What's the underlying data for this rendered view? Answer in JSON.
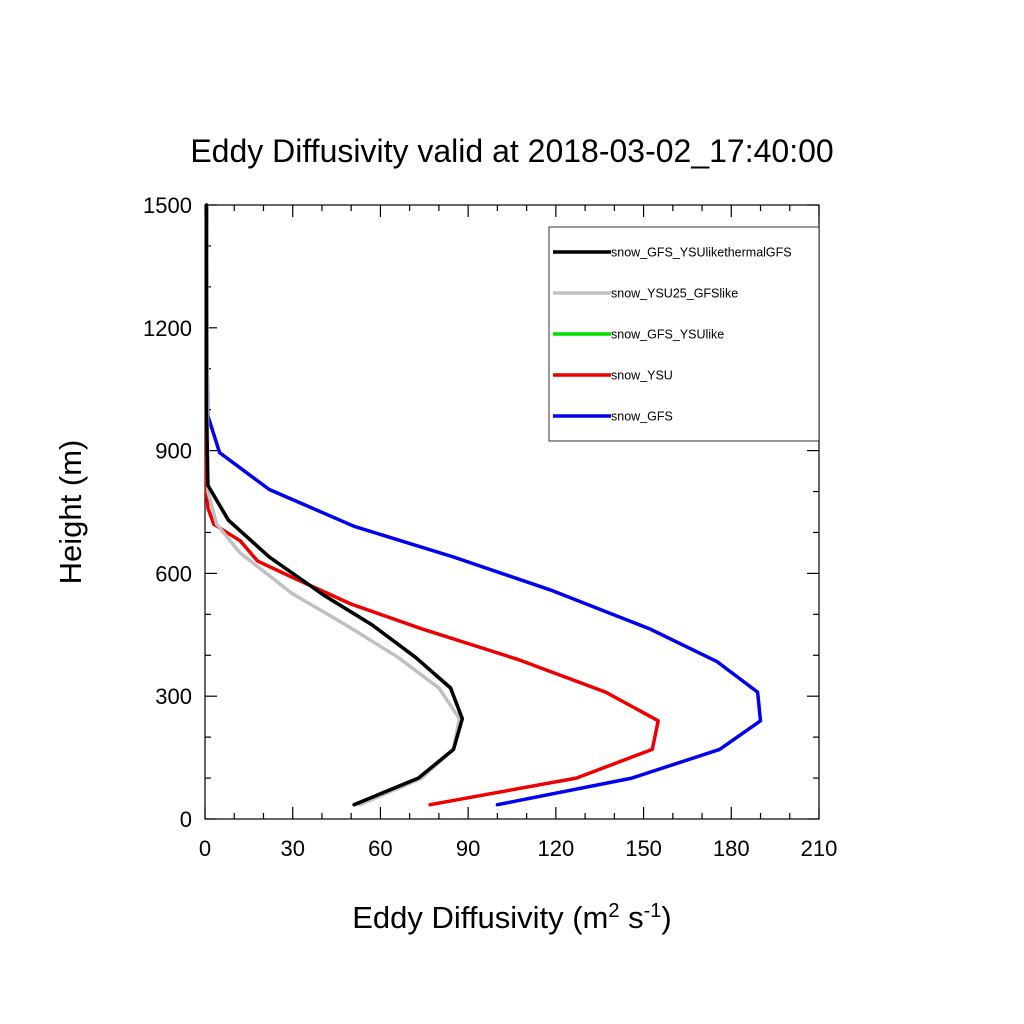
{
  "chart_data": {
    "type": "line",
    "title": "Eddy Diffusivity valid at 2018-03-02_17:40:00",
    "xlabel": "Eddy Diffusivity",
    "xlabel_unit": {
      "base1": "m",
      "sup1": "2",
      "base2": " s",
      "sup2": "-1"
    },
    "ylabel": "Height (m)",
    "xlim": [
      0,
      210
    ],
    "ylim": [
      0,
      1500
    ],
    "x_ticks": [
      0,
      30,
      60,
      90,
      120,
      150,
      180,
      210
    ],
    "y_ticks": [
      0,
      300,
      600,
      900,
      1200,
      1500
    ],
    "x_tick_labels": [
      "0",
      "30",
      "60",
      "90",
      "120",
      "150",
      "180",
      "210"
    ],
    "y_tick_labels": [
      "0",
      "300",
      "600",
      "900",
      "1200",
      "1500"
    ],
    "x_minor_step": 10,
    "y_minor_step": 100,
    "legend_position": "top-right",
    "series": [
      {
        "name": "snow_GFS",
        "color": "#0000ee",
        "points": [
          [
            100,
            35
          ],
          [
            146,
            100
          ],
          [
            176,
            170
          ],
          [
            190,
            240
          ],
          [
            189,
            310
          ],
          [
            175,
            385
          ],
          [
            152,
            465
          ],
          [
            118,
            560
          ],
          [
            85,
            640
          ],
          [
            51,
            715
          ],
          [
            22,
            805
          ],
          [
            5,
            895
          ],
          [
            1,
            985
          ],
          [
            0.5,
            1200
          ],
          [
            0.5,
            1500
          ]
        ]
      },
      {
        "name": "snow_YSU",
        "color": "#ee0000",
        "points": [
          [
            77,
            35
          ],
          [
            127,
            100
          ],
          [
            153,
            170
          ],
          [
            155,
            240
          ],
          [
            137,
            310
          ],
          [
            107,
            390
          ],
          [
            74,
            465
          ],
          [
            50,
            525
          ],
          [
            30,
            590
          ],
          [
            18,
            630
          ],
          [
            12,
            680
          ],
          [
            3,
            720
          ],
          [
            1,
            760
          ],
          [
            0.5,
            800
          ],
          [
            0.5,
            1500
          ]
        ]
      },
      {
        "name": "snow_GFS_YSUlike",
        "color": "#00dd00",
        "points": [
          [
            51,
            35
          ],
          [
            73,
            100
          ],
          [
            85,
            170
          ],
          [
            88,
            245
          ],
          [
            84,
            320
          ],
          [
            72,
            395
          ],
          [
            57,
            475
          ],
          [
            41,
            545
          ],
          [
            22,
            640
          ],
          [
            8,
            730
          ],
          [
            1,
            815
          ],
          [
            0.5,
            1000
          ],
          [
            0.5,
            1500
          ]
        ]
      },
      {
        "name": "snow_YSU25_GFSlike",
        "color": "#c0c0c0",
        "points": [
          [
            53,
            35
          ],
          [
            74,
            100
          ],
          [
            85,
            170
          ],
          [
            87,
            245
          ],
          [
            80,
            320
          ],
          [
            66,
            395
          ],
          [
            48,
            475
          ],
          [
            30,
            550
          ],
          [
            12,
            650
          ],
          [
            4,
            720
          ],
          [
            1,
            800
          ],
          [
            0.5,
            1500
          ]
        ]
      },
      {
        "name": "snow_GFS_YSUlikethermalGFS",
        "color": "#000000",
        "points": [
          [
            51,
            35
          ],
          [
            73,
            100
          ],
          [
            85,
            170
          ],
          [
            88,
            245
          ],
          [
            84,
            320
          ],
          [
            72,
            395
          ],
          [
            57,
            475
          ],
          [
            41,
            545
          ],
          [
            22,
            640
          ],
          [
            8,
            730
          ],
          [
            1,
            815
          ],
          [
            0.5,
            1000
          ],
          [
            0.5,
            1500
          ]
        ]
      }
    ],
    "legend_order": [
      "snow_GFS_YSUlikethermalGFS",
      "snow_YSU25_GFSlike",
      "snow_GFS_YSUlike",
      "snow_YSU",
      "snow_GFS"
    ]
  }
}
